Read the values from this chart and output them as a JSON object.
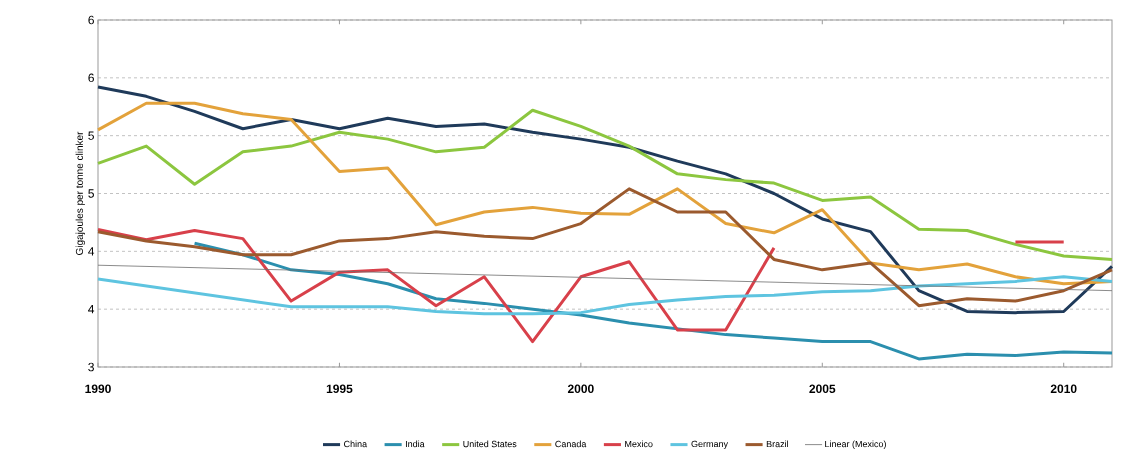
{
  "chart_data": {
    "type": "line",
    "ylabel": "Gigajoules per tonne clinker",
    "x": [
      1990,
      1991,
      1992,
      1993,
      1994,
      1995,
      1996,
      1997,
      1998,
      1999,
      2000,
      2001,
      2002,
      2003,
      2004,
      2005,
      2006,
      2007,
      2008,
      2009,
      2010,
      2011
    ],
    "xlim": [
      1990,
      2011
    ],
    "xticks": [
      1990,
      1995,
      2000,
      2005,
      2010
    ],
    "ylim": [
      3,
      6
    ],
    "yticks": [
      3,
      {
        "value": 3.5,
        "label": "4"
      },
      4,
      {
        "value": 4.5,
        "label": "5"
      },
      5,
      {
        "value": 5.5,
        "label": "6"
      },
      6
    ],
    "grid": "y",
    "legend": "bottom",
    "line_style": "solid",
    "marker": "none",
    "series": [
      {
        "name": "China",
        "color": "#1f3a5a",
        "values": [
          5.42,
          5.34,
          5.21,
          5.06,
          5.14,
          5.06,
          5.15,
          5.08,
          5.1,
          5.03,
          4.97,
          4.9,
          4.78,
          4.67,
          4.5,
          4.28,
          4.17,
          3.66,
          3.48,
          3.47,
          3.48,
          3.87
        ]
      },
      {
        "name": "India",
        "color": "#2b8fae",
        "values": [
          null,
          null,
          4.07,
          3.97,
          3.84,
          3.8,
          3.72,
          3.59,
          3.55,
          3.5,
          3.45,
          3.38,
          3.33,
          3.28,
          3.25,
          3.22,
          3.22,
          3.07,
          3.11,
          3.1,
          3.13,
          3.12
        ]
      },
      {
        "name": "United States",
        "color": "#8cc63f",
        "values": [
          4.76,
          4.91,
          4.58,
          4.86,
          4.91,
          5.03,
          4.97,
          4.86,
          4.9,
          5.22,
          5.08,
          4.91,
          4.67,
          4.62,
          4.59,
          4.44,
          4.47,
          4.19,
          4.18,
          4.06,
          3.96,
          3.93
        ]
      },
      {
        "name": "Canada",
        "color": "#e3a23b",
        "values": [
          5.05,
          5.28,
          5.28,
          5.19,
          5.14,
          4.69,
          4.72,
          4.23,
          4.34,
          4.38,
          4.33,
          4.32,
          4.54,
          4.24,
          4.16,
          4.36,
          3.9,
          3.84,
          3.89,
          3.78,
          3.72,
          3.74
        ]
      },
      {
        "name": "Mexico",
        "color": "#d8404a",
        "values": [
          4.19,
          4.1,
          4.18,
          4.11,
          3.57,
          3.82,
          3.84,
          3.53,
          3.78,
          3.22,
          3.78,
          3.91,
          3.32,
          3.32,
          4.03,
          null,
          null,
          null,
          null,
          4.08,
          4.08,
          null
        ]
      },
      {
        "name": "Germany",
        "color": "#5ec4e0",
        "values": [
          3.76,
          3.7,
          3.64,
          3.58,
          3.52,
          3.52,
          3.52,
          3.48,
          3.46,
          3.46,
          3.47,
          3.54,
          3.58,
          3.61,
          3.62,
          3.65,
          3.66,
          3.7,
          3.72,
          3.74,
          3.78,
          3.74
        ]
      },
      {
        "name": "Brazil",
        "color": "#9b5a2e",
        "values": [
          4.17,
          4.09,
          4.04,
          3.97,
          3.97,
          4.09,
          4.11,
          4.17,
          4.13,
          4.11,
          4.24,
          4.54,
          4.34,
          4.34,
          3.93,
          3.84,
          3.9,
          3.53,
          3.59,
          3.57,
          3.66,
          3.84
        ]
      },
      {
        "name": "Linear (Mexico)",
        "type": "line",
        "color": "#6d6d6d",
        "x": [
          1990,
          2011
        ],
        "values": [
          3.88,
          3.66
        ]
      }
    ]
  }
}
